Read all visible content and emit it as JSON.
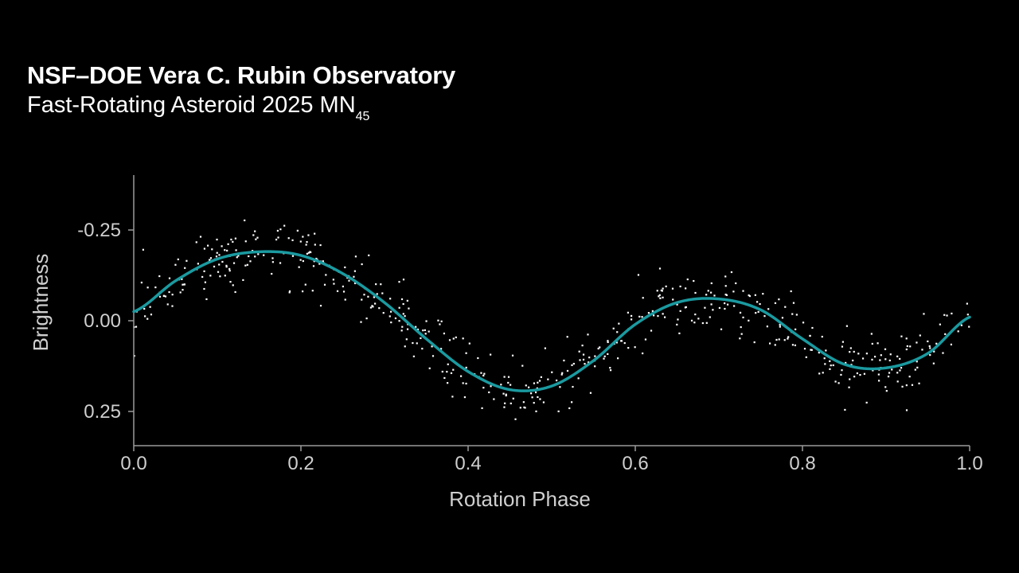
{
  "header": {
    "title": "NSF–DOE Vera C. Rubin Observatory",
    "subtitle_main": "Fast-Rotating Asteroid 2025 MN",
    "subtitle_sub": "45"
  },
  "colors": {
    "background": "#000000",
    "curve": "#1a9aa0",
    "points": "#ffffff",
    "axis": "#9a9a9a",
    "text": "#ffffff"
  },
  "chart_data": {
    "type": "scatter",
    "title": "Fast-Rotating Asteroid 2025 MN45",
    "xlabel": "Rotation Phase",
    "ylabel": "Brightness",
    "xlim": [
      0.0,
      1.0
    ],
    "ylim": [
      0.35,
      -0.4
    ],
    "y_inverted": true,
    "xticks": [
      0.0,
      0.2,
      0.4,
      0.6,
      0.8,
      1.0
    ],
    "xtick_labels": [
      "0.0",
      "0.2",
      "0.4",
      "0.6",
      "0.8",
      "1.0"
    ],
    "yticks": [
      -0.25,
      0.0,
      0.25
    ],
    "ytick_labels": [
      "-0.25",
      "0.00",
      "0.25"
    ],
    "grid": false,
    "series": [
      {
        "name": "observations",
        "kind": "scatter",
        "point_count": 560,
        "note": "noisy photometric measurements scattered around the fitted curve (std ≈ 0.05)"
      },
      {
        "name": "fit",
        "kind": "line",
        "x": [
          0.0,
          0.05,
          0.1,
          0.15,
          0.2,
          0.25,
          0.3,
          0.35,
          0.4,
          0.45,
          0.5,
          0.55,
          0.6,
          0.65,
          0.7,
          0.75,
          0.8,
          0.85,
          0.9,
          0.95,
          1.0
        ],
        "y": [
          -0.025,
          -0.11,
          -0.17,
          -0.19,
          -0.18,
          -0.13,
          -0.05,
          0.05,
          0.14,
          0.19,
          0.18,
          0.11,
          0.01,
          -0.05,
          -0.06,
          -0.03,
          0.05,
          0.12,
          0.13,
          0.09,
          -0.01
        ]
      }
    ]
  }
}
